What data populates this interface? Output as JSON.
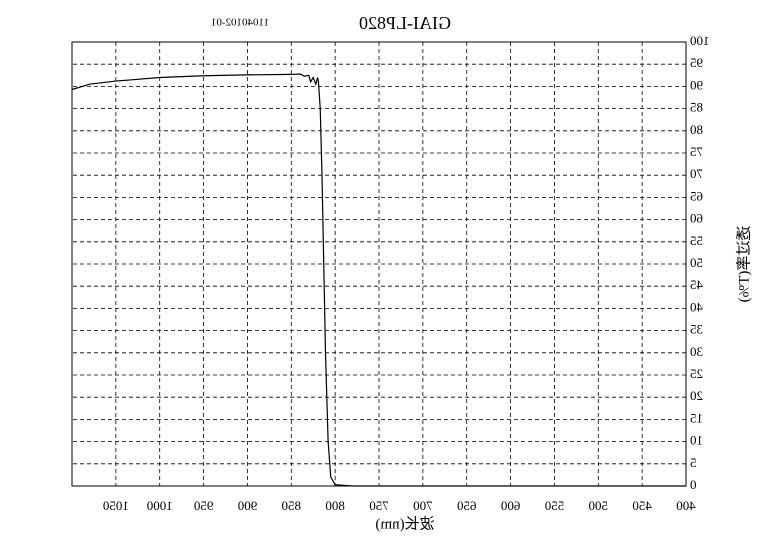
{
  "chart_data": {
    "type": "line",
    "title": "GIAI-LP820",
    "subtitle": "11040102-01",
    "x_label": "波长(nm)",
    "y_label": "透过率(T%)",
    "x": [
      400,
      500,
      600,
      700,
      780,
      800,
      805,
      808,
      811,
      813,
      815,
      817,
      819,
      820,
      822,
      825,
      828,
      830,
      835,
      840,
      850,
      900,
      950,
      1000,
      1050,
      1080,
      1100
    ],
    "series": [
      {
        "name": "GIAI-LP820",
        "color": "#000000",
        "values": [
          0,
          0,
          0,
          0,
          0,
          0.3,
          2,
          10,
          30,
          50,
          70,
          85,
          91,
          92,
          90.5,
          92,
          91,
          92.5,
          92.3,
          92.8,
          92.7,
          92.6,
          92.4,
          92,
          91.2,
          90.5,
          89.3
        ]
      }
    ],
    "xlim": [
      400,
      1100
    ],
    "xticks": [
      400,
      450,
      500,
      550,
      600,
      650,
      700,
      750,
      800,
      850,
      900,
      950,
      1000,
      1050
    ],
    "ylim": [
      0,
      100
    ],
    "yticks": [
      0,
      5,
      10,
      15,
      20,
      25,
      30,
      35,
      40,
      45,
      50,
      55,
      60,
      65,
      70,
      75,
      80,
      85,
      90,
      95,
      100
    ],
    "grid": true
  }
}
